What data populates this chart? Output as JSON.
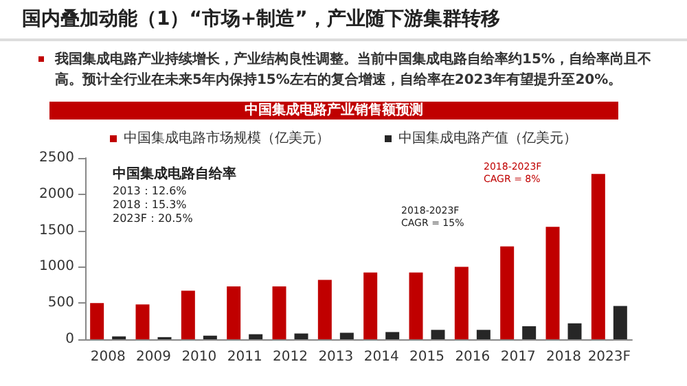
{
  "chart_data": {
    "type": "bar",
    "title": "国内叠加动能（1）“市场+制造”，产业随下游集群转移",
    "subtitle": "我国集成电路产业持续增长，产业结构良性调整。当前中国集成电路自给率约15%，自给率尚且不高。预计全行业在未来5年内保持15%左右的复合增速，自给率在2023年有望提升至20%。",
    "xlabel": "中国集成电路产业销售额预测",
    "categories": [
      "2008",
      "2009",
      "2010",
      "2011",
      "2012",
      "2013",
      "2014",
      "2015",
      "2016",
      "2017",
      "2018",
      "2023F"
    ],
    "series": [
      {
        "name": "中国集成电路市场规模（亿美元）",
        "color": "#c00000",
        "values": [
          500,
          480,
          670,
          730,
          730,
          820,
          920,
          920,
          1000,
          1280,
          1550,
          2280
        ]
      },
      {
        "name": "中国集成电路产值（亿美元）",
        "color": "#262626",
        "values": [
          40,
          30,
          50,
          70,
          80,
          90,
          100,
          130,
          130,
          180,
          220,
          460
        ]
      }
    ],
    "ylim": [
      0,
      2500
    ],
    "yticks": [
      0,
      500,
      1000,
      1500,
      2000,
      2500
    ],
    "grid": false,
    "legend": "top",
    "annotations": [
      "中国集成电路自给率",
      "2013：12.6%",
      "2018：15.3%",
      "2023F：20.5%",
      "2018-2023F\nCAGR = 8%",
      "2018-2023F\nCAGR = 15%"
    ]
  }
}
